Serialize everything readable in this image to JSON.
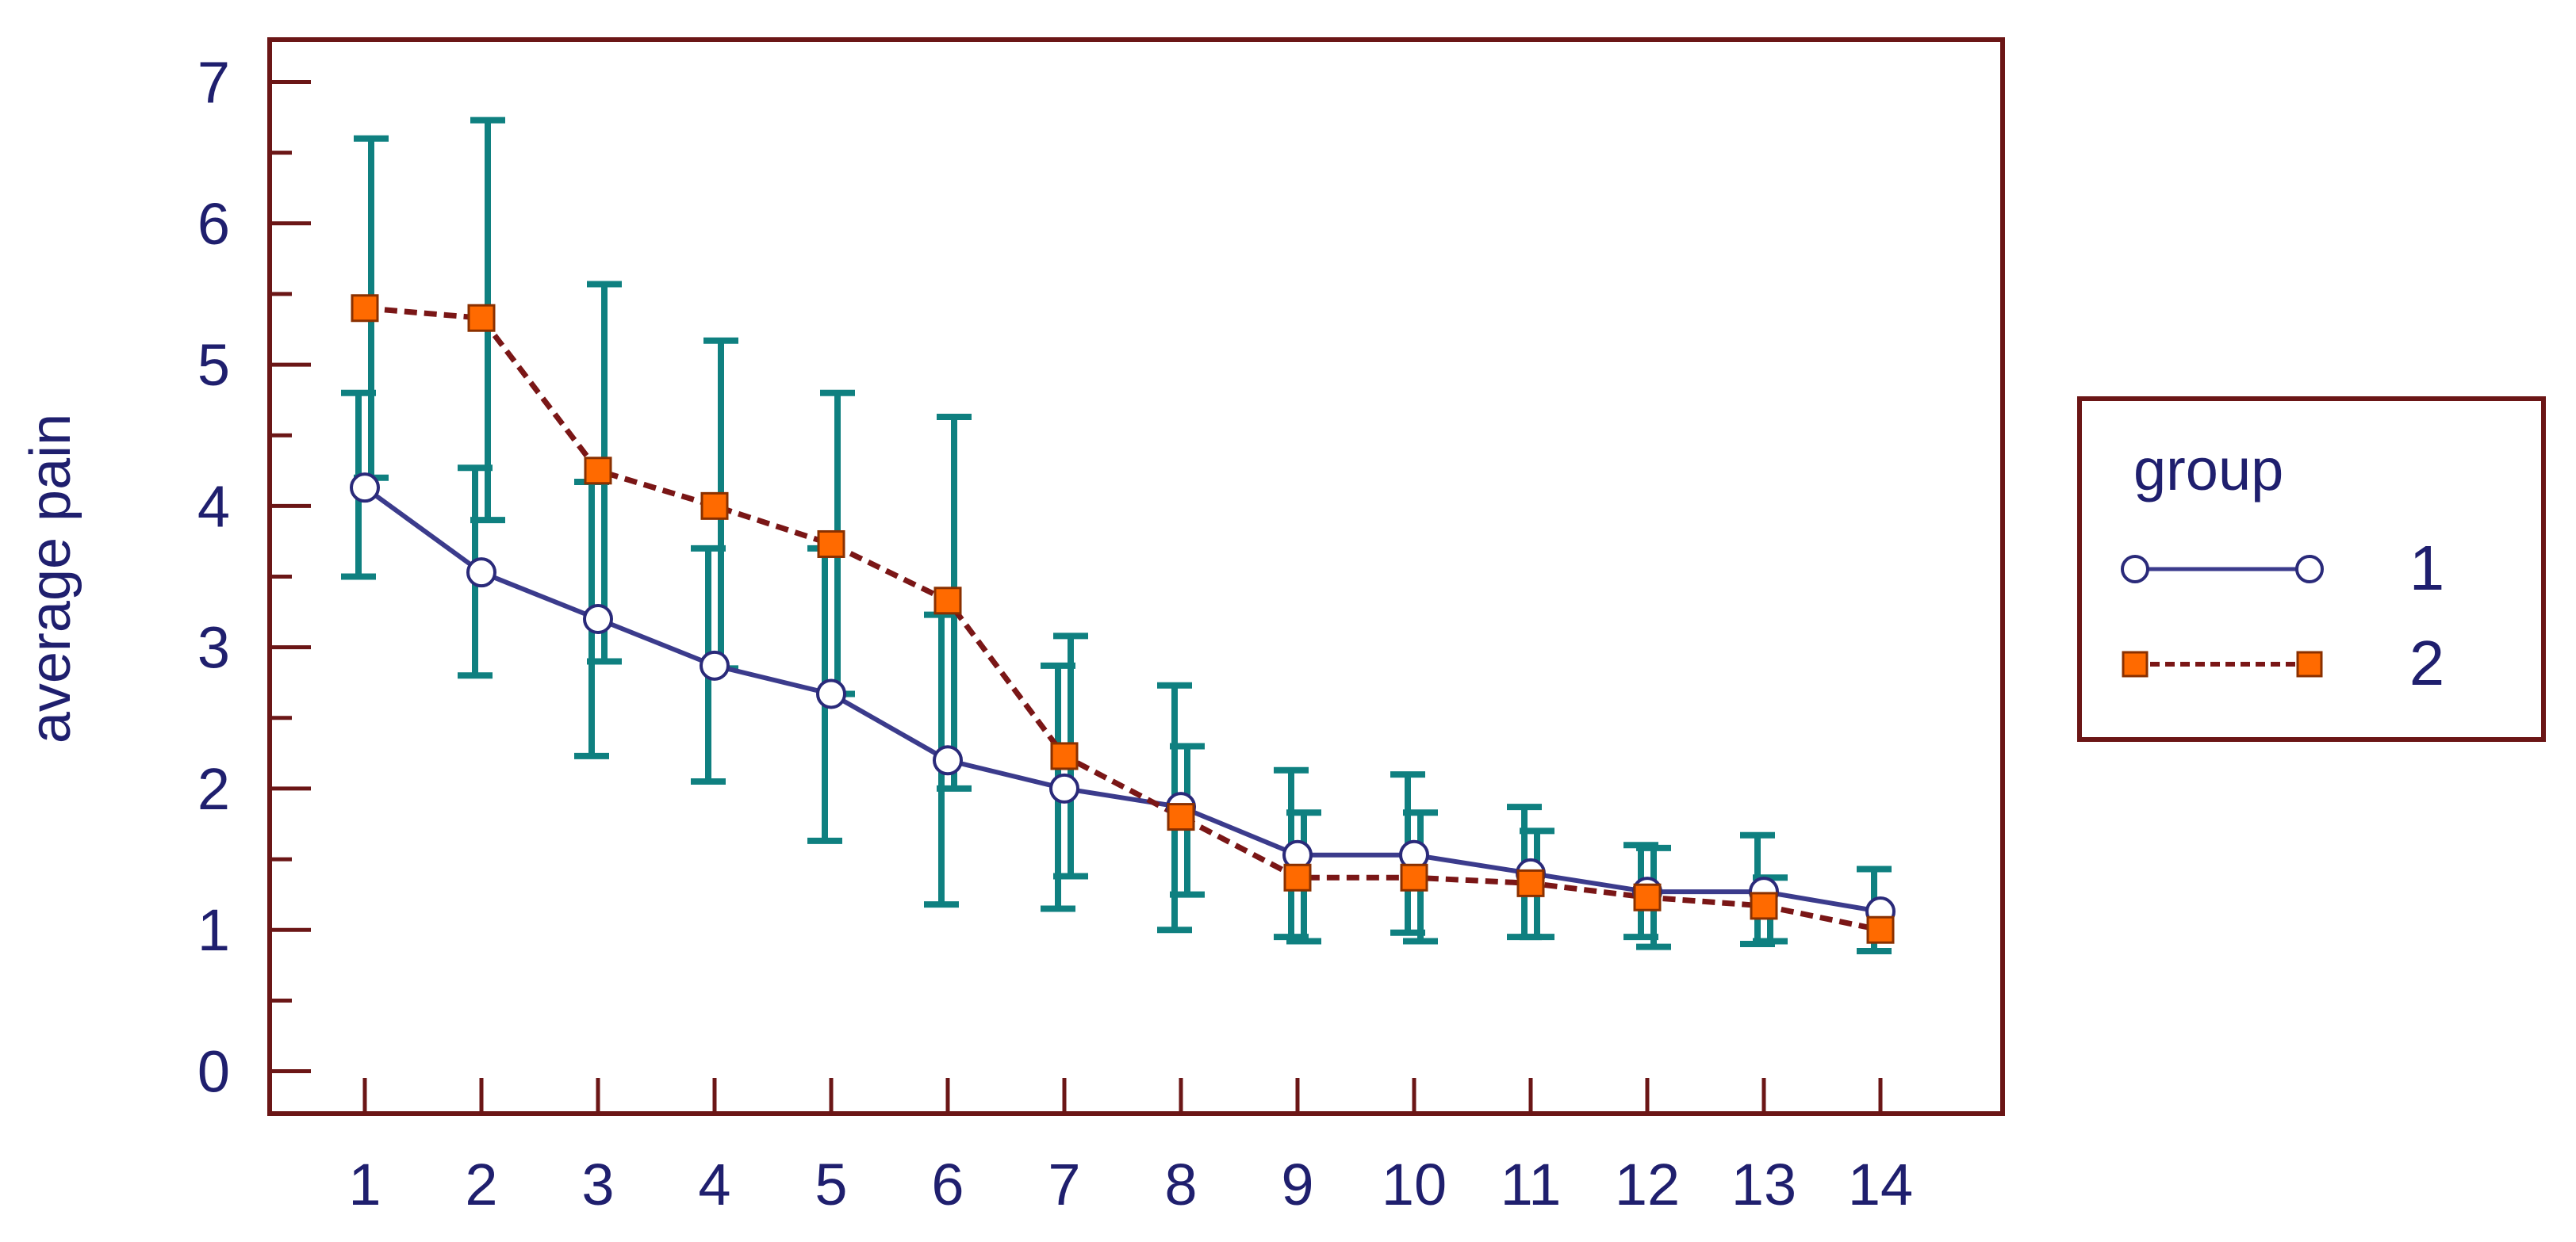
{
  "chart_data": {
    "type": "line",
    "xlabel": "",
    "ylabel": "average pain",
    "categories": [
      "1",
      "2",
      "3",
      "4",
      "5",
      "6",
      "7",
      "8",
      "9",
      "10",
      "11",
      "12",
      "13",
      "14"
    ],
    "ylim": [
      -0.3,
      7.3
    ],
    "yticks": [
      0,
      1,
      2,
      3,
      4,
      5,
      6,
      7
    ],
    "grid": false,
    "legend": {
      "title": "group",
      "placement": "right"
    },
    "series": [
      {
        "name": "1",
        "style": "solid",
        "marker": "circle",
        "line_color": "#3b3b8c",
        "marker_fill": "#ffffff",
        "marker_stroke": "#2a2a7a",
        "values": [
          4.13,
          3.53,
          3.2,
          2.87,
          2.67,
          2.2,
          2.0,
          1.87,
          1.53,
          1.53,
          1.4,
          1.27,
          1.27,
          1.13
        ],
        "upper": [
          4.8,
          4.27,
          4.17,
          3.7,
          3.7,
          3.23,
          2.87,
          2.73,
          2.13,
          2.1,
          1.87,
          1.6,
          1.67,
          1.43
        ],
        "lower": [
          3.5,
          2.8,
          2.23,
          2.05,
          1.63,
          1.18,
          1.15,
          1.0,
          0.95,
          0.98,
          0.95,
          0.95,
          0.9,
          0.85
        ]
      },
      {
        "name": "2",
        "style": "dashed",
        "marker": "square",
        "line_color": "#7a1616",
        "marker_fill": "#ff6a00",
        "marker_stroke": "#8a3000",
        "values": [
          5.4,
          5.33,
          4.25,
          4.0,
          3.73,
          3.33,
          2.23,
          1.8,
          1.37,
          1.37,
          1.33,
          1.23,
          1.17,
          1.0
        ],
        "upper": [
          6.6,
          6.73,
          5.57,
          5.17,
          4.8,
          4.63,
          3.08,
          2.3,
          1.83,
          1.83,
          1.7,
          1.58,
          1.37,
          1.0
        ],
        "lower": [
          4.2,
          3.9,
          2.9,
          2.85,
          2.67,
          2.0,
          1.38,
          1.25,
          0.92,
          0.92,
          0.95,
          0.88,
          0.92,
          1.0
        ]
      }
    ],
    "colors": {
      "axis_frame": "#6b1616",
      "tick_text": "#1f1f6e",
      "error_bar": "#0f8080"
    }
  }
}
